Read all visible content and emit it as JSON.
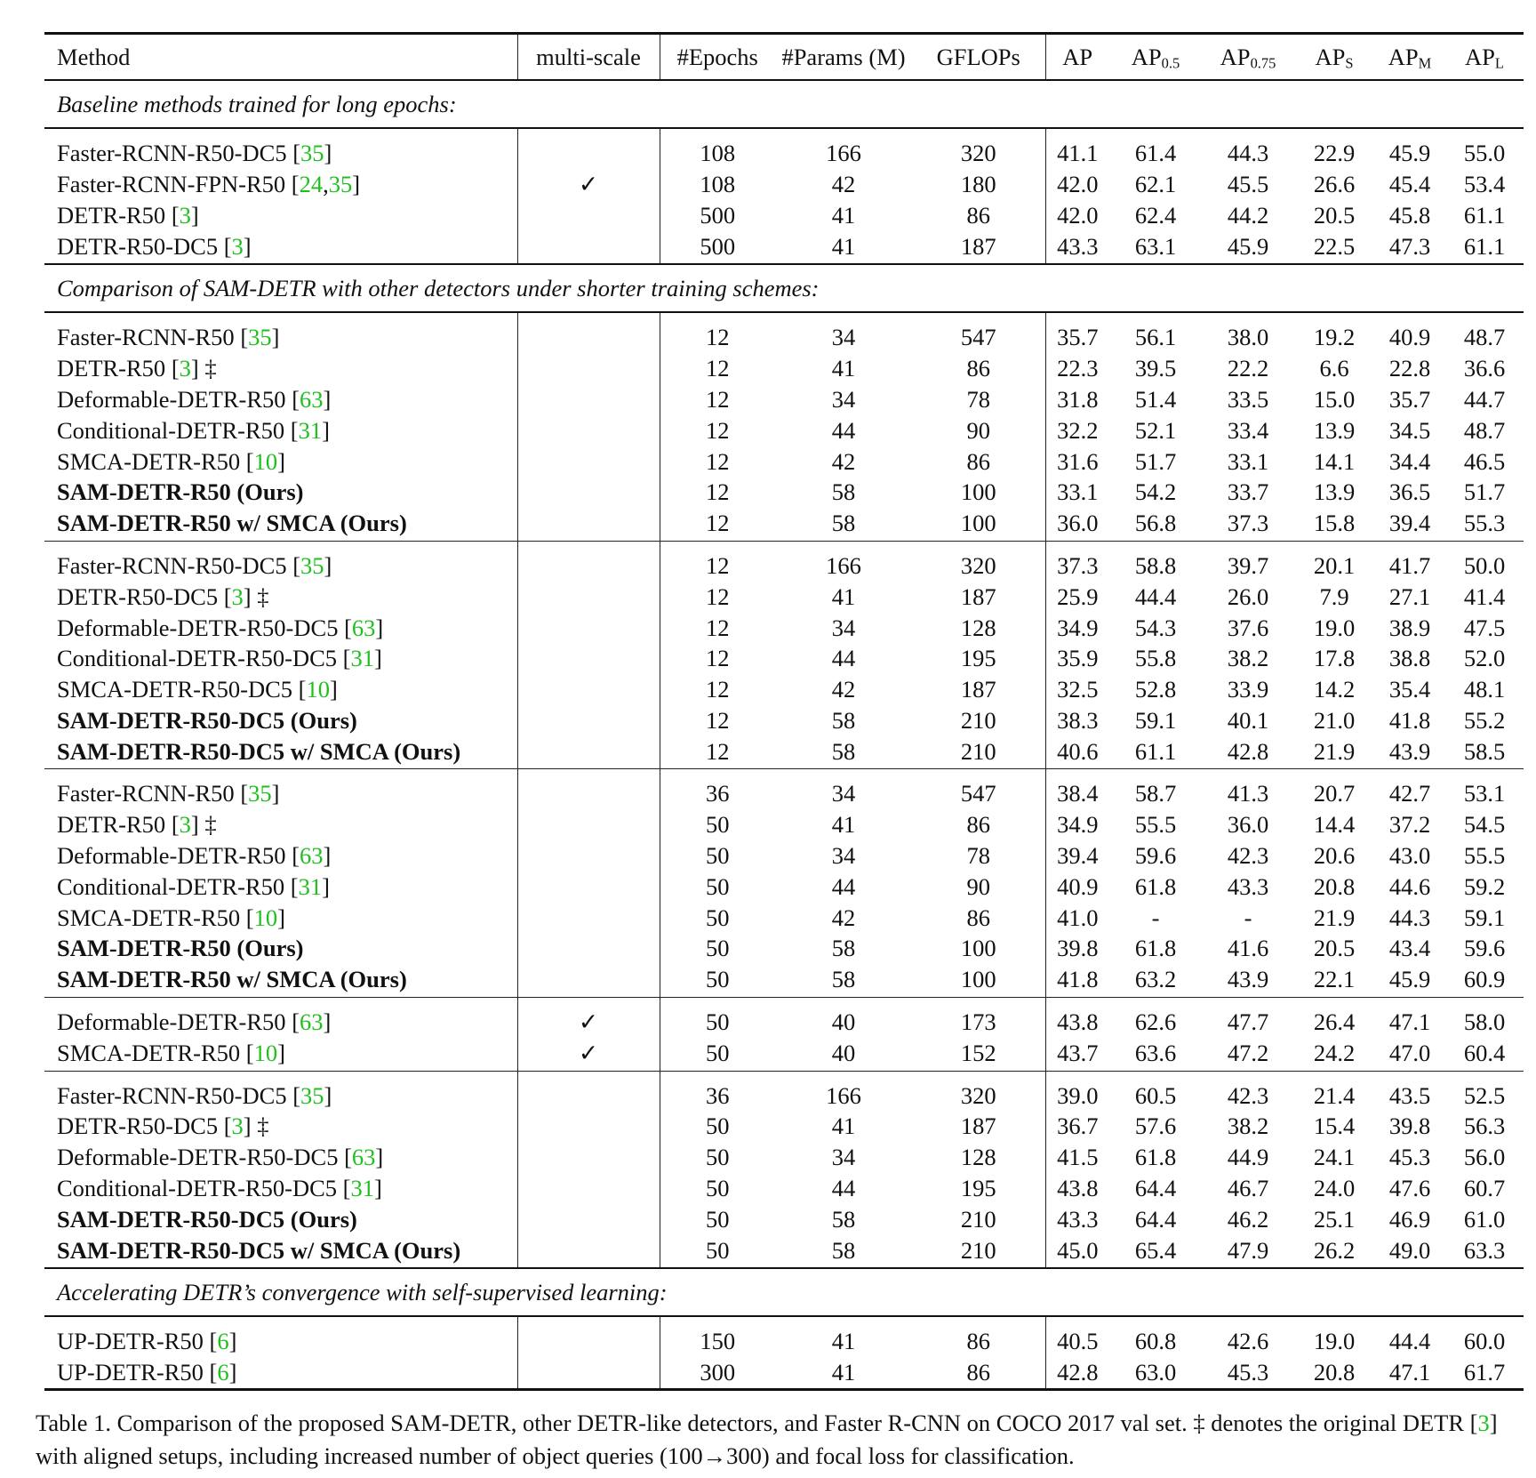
{
  "header": {
    "method": "Method",
    "multiscale": "multi-scale",
    "epochs": "#Epochs",
    "params": "#Params (M)",
    "gflops": "GFLOPs",
    "ap": "AP",
    "ap50_base": "AP",
    "ap50_sub": "0.5",
    "ap75_base": "AP",
    "ap75_sub": "0.75",
    "aps_base": "AP",
    "aps_sub": "S",
    "apm_base": "AP",
    "apm_sub": "M",
    "apl_base": "AP",
    "apl_sub": "L"
  },
  "sections": [
    {
      "title": "Baseline methods trained for long epochs:",
      "groups": [
        [
          {
            "name": "Faster-RCNN-R50-DC5 ",
            "refs": [
              "35"
            ],
            "suffix": "",
            "bold": false,
            "ms": "",
            "epochs": "108",
            "params": "166",
            "gflops": "320",
            "ap": "41.1",
            "ap50": "61.4",
            "ap75": "44.3",
            "aps": "22.9",
            "apm": "45.9",
            "apl": "55.0"
          },
          {
            "name": "Faster-RCNN-FPN-R50 ",
            "refs": [
              "24",
              "35"
            ],
            "suffix": "",
            "bold": false,
            "ms": "✓",
            "epochs": "108",
            "params": "42",
            "gflops": "180",
            "ap": "42.0",
            "ap50": "62.1",
            "ap75": "45.5",
            "aps": "26.6",
            "apm": "45.4",
            "apl": "53.4"
          },
          {
            "name": "DETR-R50 ",
            "refs": [
              "3"
            ],
            "suffix": "",
            "bold": false,
            "ms": "",
            "epochs": "500",
            "params": "41",
            "gflops": "86",
            "ap": "42.0",
            "ap50": "62.4",
            "ap75": "44.2",
            "aps": "20.5",
            "apm": "45.8",
            "apl": "61.1"
          },
          {
            "name": "DETR-R50-DC5 ",
            "refs": [
              "3"
            ],
            "suffix": "",
            "bold": false,
            "ms": "",
            "epochs": "500",
            "params": "41",
            "gflops": "187",
            "ap": "43.3",
            "ap50": "63.1",
            "ap75": "45.9",
            "aps": "22.5",
            "apm": "47.3",
            "apl": "61.1"
          }
        ]
      ]
    },
    {
      "title": "Comparison of SAM-DETR with other detectors under shorter training schemes:",
      "groups": [
        [
          {
            "name": "Faster-RCNN-R50 ",
            "refs": [
              "35"
            ],
            "suffix": "",
            "bold": false,
            "ms": "",
            "epochs": "12",
            "params": "34",
            "gflops": "547",
            "ap": "35.7",
            "ap50": "56.1",
            "ap75": "38.0",
            "aps": "19.2",
            "apm": "40.9",
            "apl": "48.7"
          },
          {
            "name": "DETR-R50 ",
            "refs": [
              "3"
            ],
            "suffix": " ‡",
            "bold": false,
            "ms": "",
            "epochs": "12",
            "params": "41",
            "gflops": "86",
            "ap": "22.3",
            "ap50": "39.5",
            "ap75": "22.2",
            "aps": "6.6",
            "apm": "22.8",
            "apl": "36.6"
          },
          {
            "name": "Deformable-DETR-R50 ",
            "refs": [
              "63"
            ],
            "suffix": "",
            "bold": false,
            "ms": "",
            "epochs": "12",
            "params": "34",
            "gflops": "78",
            "ap": "31.8",
            "ap50": "51.4",
            "ap75": "33.5",
            "aps": "15.0",
            "apm": "35.7",
            "apl": "44.7"
          },
          {
            "name": "Conditional-DETR-R50 ",
            "refs": [
              "31"
            ],
            "suffix": "",
            "bold": false,
            "ms": "",
            "epochs": "12",
            "params": "44",
            "gflops": "90",
            "ap": "32.2",
            "ap50": "52.1",
            "ap75": "33.4",
            "aps": "13.9",
            "apm": "34.5",
            "apl": "48.7"
          },
          {
            "name": "SMCA-DETR-R50 ",
            "refs": [
              "10"
            ],
            "suffix": "",
            "bold": false,
            "ms": "",
            "epochs": "12",
            "params": "42",
            "gflops": "86",
            "ap": "31.6",
            "ap50": "51.7",
            "ap75": "33.1",
            "aps": "14.1",
            "apm": "34.4",
            "apl": "46.5"
          },
          {
            "name": "SAM-DETR-R50 (Ours)",
            "refs": [],
            "suffix": "",
            "bold": true,
            "ms": "",
            "epochs": "12",
            "params": "58",
            "gflops": "100",
            "ap": "33.1",
            "ap50": "54.2",
            "ap75": "33.7",
            "aps": "13.9",
            "apm": "36.5",
            "apl": "51.7"
          },
          {
            "name": "SAM-DETR-R50 w/ SMCA (Ours)",
            "refs": [],
            "suffix": "",
            "bold": true,
            "ms": "",
            "epochs": "12",
            "params": "58",
            "gflops": "100",
            "ap": "36.0",
            "ap50": "56.8",
            "ap75": "37.3",
            "aps": "15.8",
            "apm": "39.4",
            "apl": "55.3"
          }
        ],
        [
          {
            "name": "Faster-RCNN-R50-DC5 ",
            "refs": [
              "35"
            ],
            "suffix": "",
            "bold": false,
            "ms": "",
            "epochs": "12",
            "params": "166",
            "gflops": "320",
            "ap": "37.3",
            "ap50": "58.8",
            "ap75": "39.7",
            "aps": "20.1",
            "apm": "41.7",
            "apl": "50.0"
          },
          {
            "name": "DETR-R50-DC5 ",
            "refs": [
              "3"
            ],
            "suffix": " ‡",
            "bold": false,
            "ms": "",
            "epochs": "12",
            "params": "41",
            "gflops": "187",
            "ap": "25.9",
            "ap50": "44.4",
            "ap75": "26.0",
            "aps": "7.9",
            "apm": "27.1",
            "apl": "41.4"
          },
          {
            "name": "Deformable-DETR-R50-DC5 ",
            "refs": [
              "63"
            ],
            "suffix": "",
            "bold": false,
            "ms": "",
            "epochs": "12",
            "params": "34",
            "gflops": "128",
            "ap": "34.9",
            "ap50": "54.3",
            "ap75": "37.6",
            "aps": "19.0",
            "apm": "38.9",
            "apl": "47.5"
          },
          {
            "name": "Conditional-DETR-R50-DC5 ",
            "refs": [
              "31"
            ],
            "suffix": "",
            "bold": false,
            "ms": "",
            "epochs": "12",
            "params": "44",
            "gflops": "195",
            "ap": "35.9",
            "ap50": "55.8",
            "ap75": "38.2",
            "aps": "17.8",
            "apm": "38.8",
            "apl": "52.0"
          },
          {
            "name": "SMCA-DETR-R50-DC5 ",
            "refs": [
              "10"
            ],
            "suffix": "",
            "bold": false,
            "ms": "",
            "epochs": "12",
            "params": "42",
            "gflops": "187",
            "ap": "32.5",
            "ap50": "52.8",
            "ap75": "33.9",
            "aps": "14.2",
            "apm": "35.4",
            "apl": "48.1"
          },
          {
            "name": "SAM-DETR-R50-DC5 (Ours)",
            "refs": [],
            "suffix": "",
            "bold": true,
            "ms": "",
            "epochs": "12",
            "params": "58",
            "gflops": "210",
            "ap": "38.3",
            "ap50": "59.1",
            "ap75": "40.1",
            "aps": "21.0",
            "apm": "41.8",
            "apl": "55.2"
          },
          {
            "name": "SAM-DETR-R50-DC5 w/ SMCA (Ours)",
            "refs": [],
            "suffix": "",
            "bold": true,
            "ms": "",
            "epochs": "12",
            "params": "58",
            "gflops": "210",
            "ap": "40.6",
            "ap50": "61.1",
            "ap75": "42.8",
            "aps": "21.9",
            "apm": "43.9",
            "apl": "58.5"
          }
        ],
        [
          {
            "name": "Faster-RCNN-R50 ",
            "refs": [
              "35"
            ],
            "suffix": "",
            "bold": false,
            "ms": "",
            "epochs": "36",
            "params": "34",
            "gflops": "547",
            "ap": "38.4",
            "ap50": "58.7",
            "ap75": "41.3",
            "aps": "20.7",
            "apm": "42.7",
            "apl": "53.1"
          },
          {
            "name": "DETR-R50 ",
            "refs": [
              "3"
            ],
            "suffix": " ‡",
            "bold": false,
            "ms": "",
            "epochs": "50",
            "params": "41",
            "gflops": "86",
            "ap": "34.9",
            "ap50": "55.5",
            "ap75": "36.0",
            "aps": "14.4",
            "apm": "37.2",
            "apl": "54.5"
          },
          {
            "name": "Deformable-DETR-R50 ",
            "refs": [
              "63"
            ],
            "suffix": "",
            "bold": false,
            "ms": "",
            "epochs": "50",
            "params": "34",
            "gflops": "78",
            "ap": "39.4",
            "ap50": "59.6",
            "ap75": "42.3",
            "aps": "20.6",
            "apm": "43.0",
            "apl": "55.5"
          },
          {
            "name": "Conditional-DETR-R50 ",
            "refs": [
              "31"
            ],
            "suffix": "",
            "bold": false,
            "ms": "",
            "epochs": "50",
            "params": "44",
            "gflops": "90",
            "ap": "40.9",
            "ap50": "61.8",
            "ap75": "43.3",
            "aps": "20.8",
            "apm": "44.6",
            "apl": "59.2"
          },
          {
            "name": "SMCA-DETR-R50 ",
            "refs": [
              "10"
            ],
            "suffix": "",
            "bold": false,
            "ms": "",
            "epochs": "50",
            "params": "42",
            "gflops": "86",
            "ap": "41.0",
            "ap50": "-",
            "ap75": "-",
            "aps": "21.9",
            "apm": "44.3",
            "apl": "59.1"
          },
          {
            "name": "SAM-DETR-R50 (Ours)",
            "refs": [],
            "suffix": "",
            "bold": true,
            "ms": "",
            "epochs": "50",
            "params": "58",
            "gflops": "100",
            "ap": "39.8",
            "ap50": "61.8",
            "ap75": "41.6",
            "aps": "20.5",
            "apm": "43.4",
            "apl": "59.6"
          },
          {
            "name": "SAM-DETR-R50 w/ SMCA (Ours)",
            "refs": [],
            "suffix": "",
            "bold": true,
            "ms": "",
            "epochs": "50",
            "params": "58",
            "gflops": "100",
            "ap": "41.8",
            "ap50": "63.2",
            "ap75": "43.9",
            "aps": "22.1",
            "apm": "45.9",
            "apl": "60.9"
          }
        ],
        [
          {
            "name": "Deformable-DETR-R50 ",
            "refs": [
              "63"
            ],
            "suffix": "",
            "bold": false,
            "ms": "✓",
            "epochs": "50",
            "params": "40",
            "gflops": "173",
            "ap": "43.8",
            "ap50": "62.6",
            "ap75": "47.7",
            "aps": "26.4",
            "apm": "47.1",
            "apl": "58.0"
          },
          {
            "name": "SMCA-DETR-R50 ",
            "refs": [
              "10"
            ],
            "suffix": "",
            "bold": false,
            "ms": "✓",
            "epochs": "50",
            "params": "40",
            "gflops": "152",
            "ap": "43.7",
            "ap50": "63.6",
            "ap75": "47.2",
            "aps": "24.2",
            "apm": "47.0",
            "apl": "60.4"
          }
        ],
        [
          {
            "name": "Faster-RCNN-R50-DC5 ",
            "refs": [
              "35"
            ],
            "suffix": "",
            "bold": false,
            "ms": "",
            "epochs": "36",
            "params": "166",
            "gflops": "320",
            "ap": "39.0",
            "ap50": "60.5",
            "ap75": "42.3",
            "aps": "21.4",
            "apm": "43.5",
            "apl": "52.5"
          },
          {
            "name": "DETR-R50-DC5 ",
            "refs": [
              "3"
            ],
            "suffix": " ‡",
            "bold": false,
            "ms": "",
            "epochs": "50",
            "params": "41",
            "gflops": "187",
            "ap": "36.7",
            "ap50": "57.6",
            "ap75": "38.2",
            "aps": "15.4",
            "apm": "39.8",
            "apl": "56.3"
          },
          {
            "name": "Deformable-DETR-R50-DC5 ",
            "refs": [
              "63"
            ],
            "suffix": "",
            "bold": false,
            "ms": "",
            "epochs": "50",
            "params": "34",
            "gflops": "128",
            "ap": "41.5",
            "ap50": "61.8",
            "ap75": "44.9",
            "aps": "24.1",
            "apm": "45.3",
            "apl": "56.0"
          },
          {
            "name": "Conditional-DETR-R50-DC5 ",
            "refs": [
              "31"
            ],
            "suffix": "",
            "bold": false,
            "ms": "",
            "epochs": "50",
            "params": "44",
            "gflops": "195",
            "ap": "43.8",
            "ap50": "64.4",
            "ap75": "46.7",
            "aps": "24.0",
            "apm": "47.6",
            "apl": "60.7"
          },
          {
            "name": "SAM-DETR-R50-DC5 (Ours)",
            "refs": [],
            "suffix": "",
            "bold": true,
            "ms": "",
            "epochs": "50",
            "params": "58",
            "gflops": "210",
            "ap": "43.3",
            "ap50": "64.4",
            "ap75": "46.2",
            "aps": "25.1",
            "apm": "46.9",
            "apl": "61.0"
          },
          {
            "name": "SAM-DETR-R50-DC5 w/ SMCA (Ours)",
            "refs": [],
            "suffix": "",
            "bold": true,
            "ms": "",
            "epochs": "50",
            "params": "58",
            "gflops": "210",
            "ap": "45.0",
            "ap50": "65.4",
            "ap75": "47.9",
            "aps": "26.2",
            "apm": "49.0",
            "apl": "63.3"
          }
        ]
      ]
    },
    {
      "title": "Accelerating DETR’s convergence with self-supervised learning:",
      "groups": [
        [
          {
            "name": "UP-DETR-R50 ",
            "refs": [
              "6"
            ],
            "suffix": "",
            "bold": false,
            "ms": "",
            "epochs": "150",
            "params": "41",
            "gflops": "86",
            "ap": "40.5",
            "ap50": "60.8",
            "ap75": "42.6",
            "aps": "19.0",
            "apm": "44.4",
            "apl": "60.0"
          },
          {
            "name": "UP-DETR-R50 ",
            "refs": [
              "6"
            ],
            "suffix": "",
            "bold": false,
            "ms": "",
            "epochs": "300",
            "params": "41",
            "gflops": "86",
            "ap": "42.8",
            "ap50": "63.0",
            "ap75": "45.3",
            "aps": "20.8",
            "apm": "47.1",
            "apl": "61.7"
          }
        ]
      ]
    }
  ],
  "caption": {
    "part1": "Table 1. Comparison of the proposed SAM-DETR, other DETR-like detectors, and Faster R-CNN on COCO 2017 val set. ‡ denotes the original DETR [",
    "ref": "3",
    "part2": "] with aligned setups, including increased number of object queries (100→300) and focal loss for classification."
  },
  "colors": {
    "ref": "#1fbf1f",
    "rule": "#111111"
  }
}
